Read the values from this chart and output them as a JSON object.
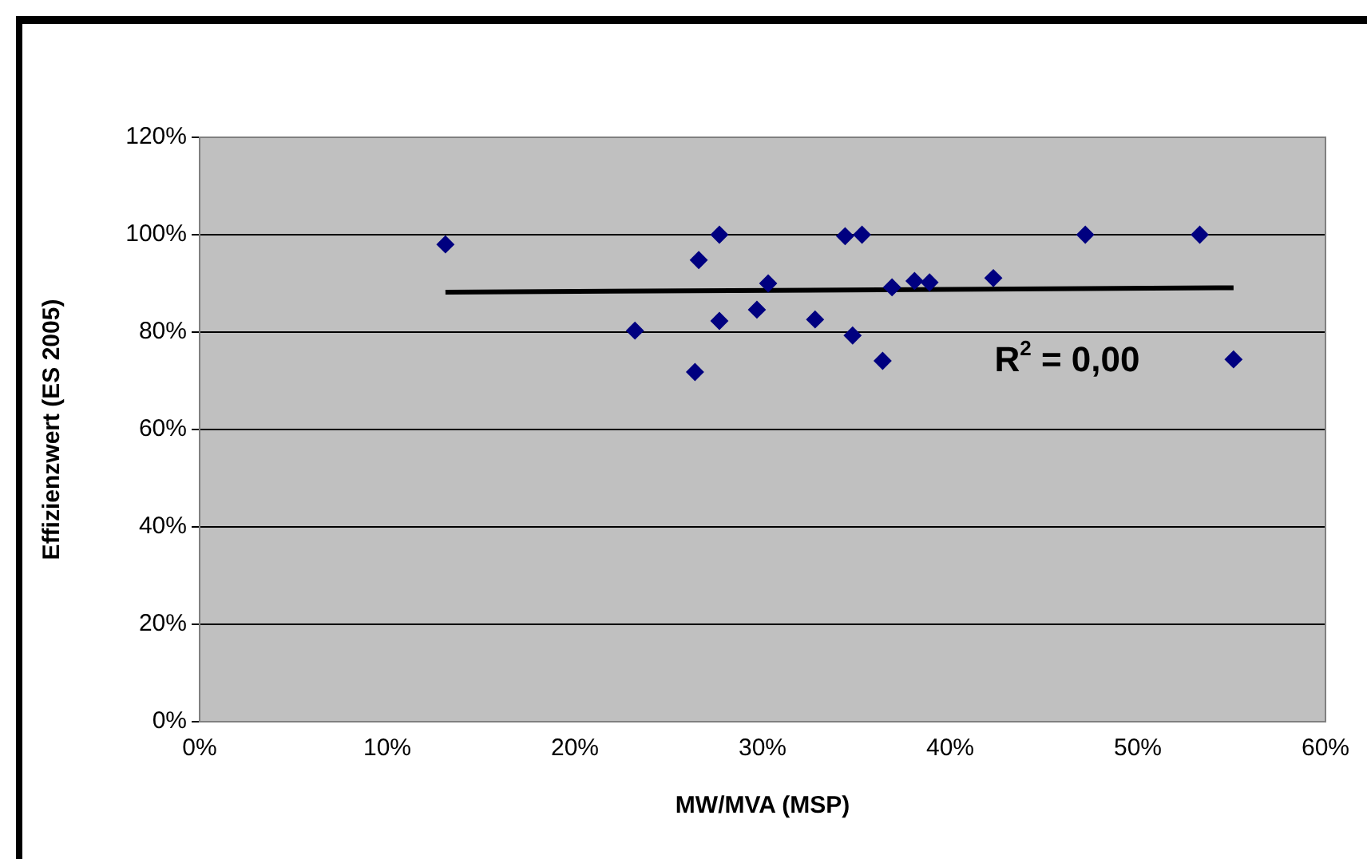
{
  "chart_data": {
    "type": "scatter",
    "xlabel": "MW/MVA (MSP)",
    "ylabel": "Effizienzwert (ES 2005)",
    "xlim": [
      0,
      60
    ],
    "ylim": [
      0,
      120
    ],
    "xticks": [
      {
        "value": 0,
        "label": "0%"
      },
      {
        "value": 10,
        "label": "10%"
      },
      {
        "value": 20,
        "label": "20%"
      },
      {
        "value": 30,
        "label": "30%"
      },
      {
        "value": 40,
        "label": "40%"
      },
      {
        "value": 50,
        "label": "50%"
      },
      {
        "value": 60,
        "label": "60%"
      }
    ],
    "yticks": [
      {
        "value": 0,
        "label": "0%"
      },
      {
        "value": 20,
        "label": "20%"
      },
      {
        "value": 40,
        "label": "40%"
      },
      {
        "value": 60,
        "label": "60%"
      },
      {
        "value": 80,
        "label": "80%"
      },
      {
        "value": 100,
        "label": "100%"
      },
      {
        "value": 120,
        "label": "120%"
      }
    ],
    "grid": "y",
    "marker": "diamond",
    "series": [
      {
        "type": "scatter",
        "color": "#000080",
        "x": [
          13.1,
          23.2,
          26.6,
          26.4,
          27.7,
          27.7,
          29.7,
          30.3,
          32.8,
          34.4,
          34.8,
          35.3,
          36.4,
          36.9,
          38.1,
          38.9,
          42.3,
          47.2,
          53.3,
          55.1
        ],
        "values": [
          98,
          80.3,
          94.8,
          71.8,
          100,
          82.3,
          84.6,
          90,
          82.6,
          99.7,
          79.3,
          100,
          74.1,
          89.2,
          90.5,
          90.2,
          91.1,
          100,
          100,
          74.4
        ]
      },
      {
        "type": "line",
        "color": "#000000",
        "marker": "none",
        "line_style": "solid",
        "x": [
          13.1,
          55.1
        ],
        "values": [
          88.2,
          89.1
        ]
      }
    ],
    "annotations": [
      "R$^{2}$ = 0,00"
    ]
  }
}
